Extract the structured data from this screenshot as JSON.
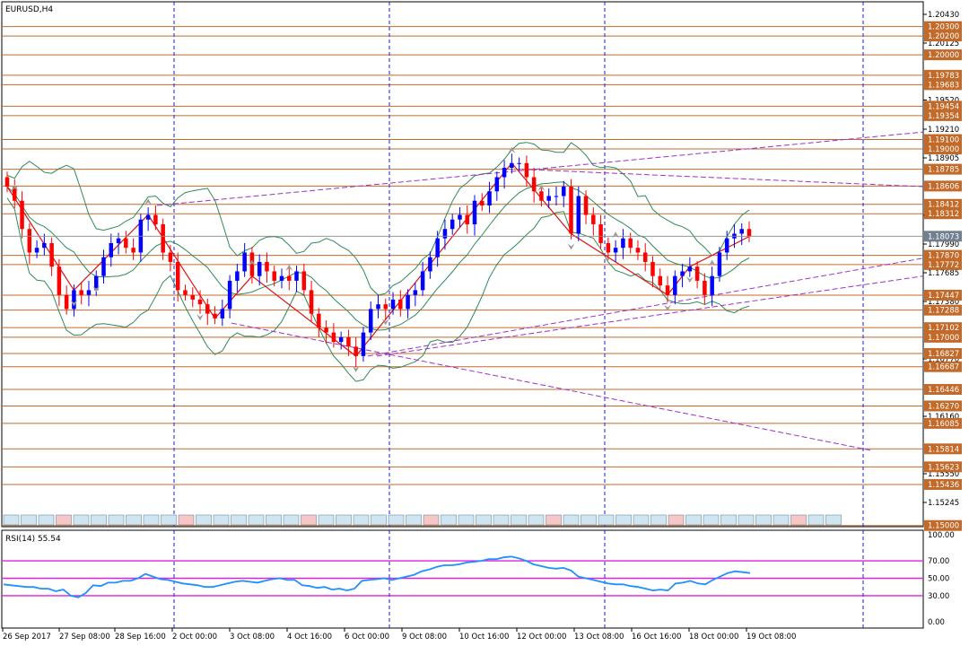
{
  "window": {
    "title": "EURUSD,H4"
  },
  "chart_data": {
    "type": "candlestick",
    "symbol": "EURUSD",
    "timeframe": "H4",
    "ylim": [
      1.149,
      1.205
    ],
    "price_ticks": [
      "1.20430",
      "1.20125",
      "1.19520",
      "1.19210",
      "1.18905",
      "1.18295",
      "1.17990",
      "1.17685",
      "1.17380",
      "1.16770",
      "1.16160",
      "1.15550",
      "1.15245"
    ],
    "level_labels": [
      "1.20300",
      "1.20200",
      "1.20000",
      "1.19783",
      "1.19683",
      "1.19454",
      "1.19354",
      "1.19100",
      "1.19000",
      "1.18785",
      "1.18606",
      "1.18412",
      "1.18312",
      "1.17870",
      "1.17772",
      "1.17447",
      "1.17288",
      "1.17102",
      "1.17000",
      "1.16827",
      "1.16687",
      "1.16446",
      "1.16270",
      "1.16085",
      "1.15814",
      "1.15623",
      "1.15436",
      "1.15000"
    ],
    "current_price": "1.18073",
    "date_labels": [
      "26 Sep 2017",
      "27 Sep 08:00",
      "28 Sep 16:00",
      "2 Oct 00:00",
      "3 Oct 08:00",
      "4 Oct 16:00",
      "6 Oct 00:00",
      "9 Oct 08:00",
      "10 Oct 16:00",
      "12 Oct 00:00",
      "13 Oct 08:00",
      "16 Oct 16:00",
      "18 Oct 00:00",
      "19 Oct 08:00"
    ],
    "close": [
      1.186,
      1.1845,
      1.1815,
      1.179,
      1.1795,
      1.18,
      1.1775,
      1.1745,
      1.173,
      1.175,
      1.1745,
      1.175,
      1.1765,
      1.1785,
      1.18,
      1.1805,
      1.1795,
      1.179,
      1.1825,
      1.183,
      1.182,
      1.179,
      1.178,
      1.175,
      1.1745,
      1.174,
      1.1735,
      1.1725,
      1.172,
      1.173,
      1.176,
      1.177,
      1.179,
      1.1765,
      1.178,
      1.177,
      1.176,
      1.1765,
      1.176,
      1.177,
      1.175,
      1.1725,
      1.171,
      1.1705,
      1.1695,
      1.17,
      1.169,
      1.168,
      1.1705,
      1.173,
      1.1735,
      1.173,
      1.174,
      1.173,
      1.1745,
      1.175,
      1.177,
      1.1785,
      1.1805,
      1.1815,
      1.1825,
      1.183,
      1.182,
      1.1845,
      1.184,
      1.1855,
      1.187,
      1.188,
      1.1885,
      1.1885,
      1.187,
      1.1855,
      1.1845,
      1.185,
      1.185,
      1.186,
      1.181,
      1.185,
      1.183,
      1.182,
      1.18,
      1.179,
      1.1795,
      1.1805,
      1.1795,
      1.179,
      1.178,
      1.1765,
      1.1755,
      1.1745,
      1.1765,
      1.177,
      1.1775,
      1.176,
      1.1745,
      1.1765,
      1.179,
      1.1805,
      1.181,
      1.1815,
      1.1807
    ],
    "indicators": [
      {
        "name": "RSI(14)",
        "value": "55.54",
        "levels": [
          70,
          50,
          30
        ],
        "ticks": [
          "100.00",
          "70.00",
          "50.00",
          "30.00",
          "0.00"
        ],
        "values": [
          43,
          42,
          41,
          40,
          40,
          38,
          38,
          35,
          37,
          30,
          28,
          33,
          42,
          41,
          45,
          45,
          47,
          47,
          50,
          55,
          52,
          49,
          48,
          46,
          44,
          43,
          42,
          40,
          40,
          42,
          44,
          46,
          47,
          46,
          45,
          47,
          49,
          50,
          48,
          48,
          42,
          41,
          39,
          40,
          37,
          38,
          36,
          38,
          47,
          48,
          49,
          50,
          48,
          50,
          52,
          54,
          58,
          60,
          63,
          65,
          65,
          66,
          68,
          69,
          70,
          72,
          72,
          74,
          75,
          73,
          70,
          66,
          64,
          62,
          61,
          62,
          59,
          52,
          50,
          48,
          46,
          44,
          43,
          43,
          41,
          40,
          38,
          36,
          37,
          36,
          44,
          45,
          47,
          44,
          43,
          48,
          52,
          56,
          58,
          57,
          56
        ]
      }
    ]
  }
}
